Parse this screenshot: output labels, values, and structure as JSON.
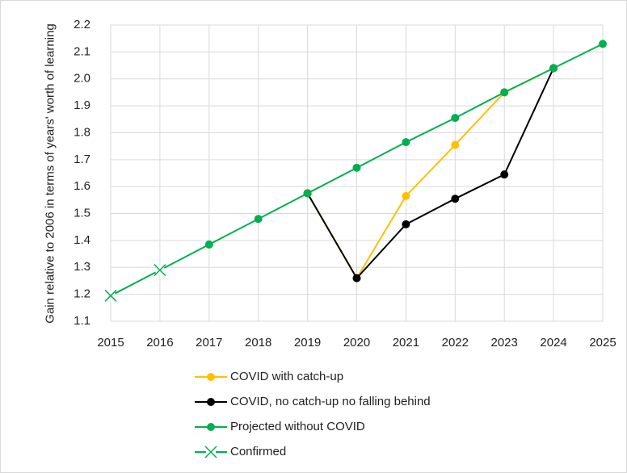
{
  "chart_data": {
    "type": "line",
    "y_label": "Gain relative to 2006 in terms of years' worth of learning",
    "xlim": [
      2015,
      2025
    ],
    "xticks": [
      2015,
      2016,
      2017,
      2018,
      2019,
      2020,
      2021,
      2022,
      2023,
      2024,
      2025
    ],
    "ylim": [
      1.1,
      2.2
    ],
    "yticks": [
      1.1,
      1.2,
      1.3,
      1.4,
      1.5,
      1.6,
      1.7,
      1.8,
      1.9,
      {
        "value": 2,
        "label": "2.0"
      },
      2.1,
      2.2
    ],
    "grid": true,
    "legend": "bottom",
    "series": [
      {
        "name": "COVID with catch-up",
        "color": "#ffc000",
        "marker": "circle",
        "x": [
          2019,
          2020,
          2021,
          2022,
          2023,
          2024
        ],
        "values": [
          1.575,
          1.26,
          1.565,
          1.755,
          1.95,
          2.04
        ]
      },
      {
        "name": "COVID, no catch-up no falling behind",
        "color": "#000000",
        "marker": "circle",
        "x": [
          2019,
          2020,
          2021,
          2022,
          2023,
          2024
        ],
        "values": [
          1.575,
          1.26,
          1.46,
          1.555,
          1.645,
          2.04
        ]
      },
      {
        "name": "Projected without COVID",
        "color": "#00b050",
        "marker": "circle",
        "x": [
          2016,
          2017,
          2018,
          2019,
          2020,
          2021,
          2022,
          2023,
          2024,
          2025
        ],
        "values": [
          1.29,
          1.385,
          1.48,
          1.575,
          1.67,
          1.765,
          1.855,
          1.95,
          2.04,
          2.13
        ]
      },
      {
        "name": "Confirmed",
        "color": "#00b050",
        "marker": "x",
        "x": [
          2015,
          2016
        ],
        "values": [
          1.195,
          1.29
        ]
      }
    ]
  }
}
